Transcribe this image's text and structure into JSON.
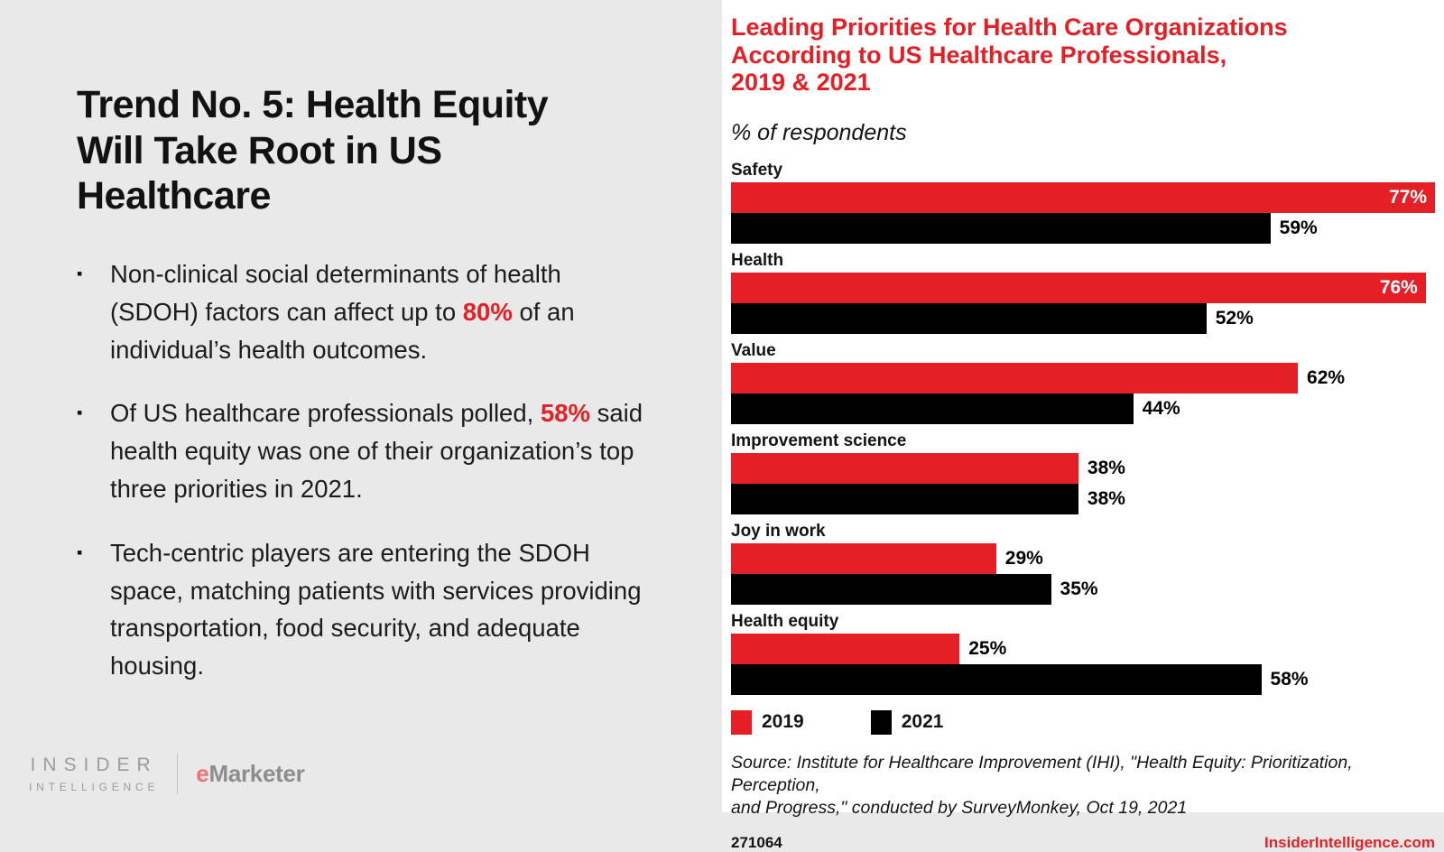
{
  "colors": {
    "red": "#e41f26",
    "ink": "#141414",
    "left_bg": "#e9e9e9",
    "panel_bg": "#ffffff",
    "brand_gray": "#9c9c9c",
    "emarketer_e": "#f07070"
  },
  "left": {
    "title_lines": [
      "Trend No. 5: Health Equity",
      "Will Take Root in US",
      "Healthcare"
    ],
    "bullet_marker": "▪",
    "bullets": [
      {
        "segments": [
          {
            "text": "Non-clinical social determinants of health (SDOH) factors can affect up to ",
            "highlight": false
          },
          {
            "text": "80%",
            "highlight": true
          },
          {
            "text": " of an individual’s health outcomes.",
            "highlight": false
          }
        ]
      },
      {
        "segments": [
          {
            "text": "Of US healthcare professionals polled, ",
            "highlight": false
          },
          {
            "text": "58%",
            "highlight": true
          },
          {
            "text": " said health equity was one of their organization’s top three priorities in 2021.",
            "highlight": false
          }
        ]
      },
      {
        "segments": [
          {
            "text": "Tech-centric players are entering the SDOH space, matching patients with services providing transportation, food security, and adequate housing.",
            "highlight": false
          }
        ]
      }
    ],
    "brand": {
      "insider_line1": "INSIDER",
      "insider_line2": "INTELLIGENCE",
      "emarketer_first": "e",
      "emarketer_rest": "Marketer"
    }
  },
  "chart": {
    "title_lines": [
      "Leading Priorities for Health Care Organizations",
      "According to US Healthcare Professionals,",
      "2019 & 2021"
    ],
    "subtitle": "% of respondents",
    "source_lines": [
      "Source: Institute for Healthcare Improvement (IHI), \"Health Equity: Prioritization, Perception,",
      "and Progress,\" conducted by SurveyMonkey, Oct 19, 2021"
    ],
    "footer_id": "271064",
    "footer_site": "InsiderIntelligence.com"
  },
  "chart_data": {
    "type": "bar",
    "orientation": "horizontal",
    "title": "Leading Priorities for Health Care Organizations According to US Healthcare Professionals, 2019 & 2021",
    "ylabel": "% of respondents",
    "xmax": 77,
    "grid": false,
    "legend_position": "bottom",
    "categories": [
      "Safety",
      "Health",
      "Value",
      "Improvement science",
      "Joy in work",
      "Health equity"
    ],
    "series": [
      {
        "name": "2019",
        "color": "#e41f26",
        "values": [
          77,
          76,
          62,
          38,
          29,
          25
        ],
        "labels": [
          "77%",
          "76%",
          "62%",
          "38%",
          "29%",
          "25%"
        ]
      },
      {
        "name": "2021",
        "color": "#000000",
        "values": [
          59,
          52,
          44,
          38,
          35,
          58
        ],
        "labels": [
          "59%",
          "52%",
          "44%",
          "38%",
          "35%",
          "58%"
        ]
      }
    ]
  }
}
